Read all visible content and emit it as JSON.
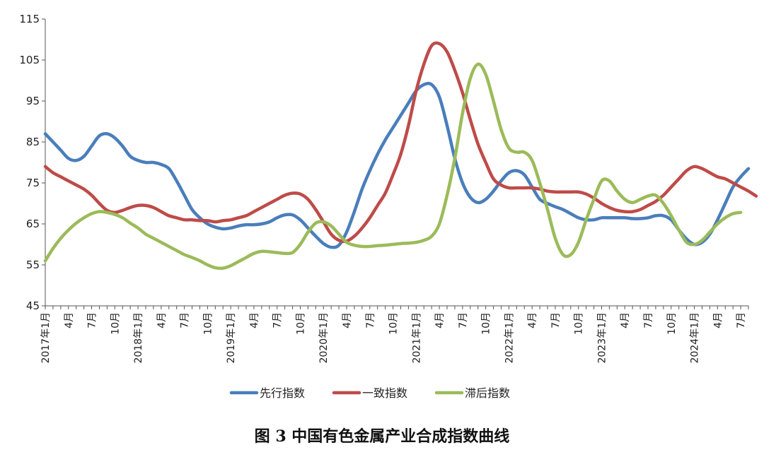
{
  "chart_data": {
    "type": "line",
    "title": "图 3    中国有色金属产业合成指数曲线",
    "xlabel": "",
    "ylabel": "",
    "ylim": [
      45,
      115
    ],
    "yticks": [
      45,
      55,
      65,
      75,
      85,
      95,
      105,
      115
    ],
    "grid": false,
    "legend_position": "bottom",
    "x_labels": [
      "2017年1月",
      "",
      "",
      "4月",
      "",
      "",
      "7月",
      "",
      "",
      "10月",
      "",
      "",
      "2018年1月",
      "",
      "",
      "4月",
      "",
      "",
      "7月",
      "",
      "",
      "10月",
      "",
      "",
      "2019年1月",
      "",
      "",
      "4月",
      "",
      "",
      "7月",
      "",
      "",
      "10月",
      "",
      "",
      "2020年1月",
      "",
      "",
      "4月",
      "",
      "",
      "7月",
      "",
      "",
      "10月",
      "",
      "",
      "2021年1月",
      "",
      "",
      "4月",
      "",
      "",
      "7月",
      "",
      "",
      "10月",
      "",
      "",
      "2022年1月",
      "",
      "",
      "4月",
      "",
      "",
      "7月",
      "",
      "",
      "10月",
      "",
      "",
      "2023年1月",
      "",
      "",
      "4月",
      "",
      "",
      "7月",
      "",
      "",
      "10月",
      "",
      "",
      "2024年1月",
      "",
      "",
      "4月",
      "",
      "",
      "7月",
      ""
    ],
    "series": [
      {
        "name": "先行指数",
        "color": "#4a7ebb",
        "values": [
          87,
          85,
          83,
          81,
          80.5,
          81.5,
          84,
          86.5,
          87,
          86,
          84,
          81.5,
          80.5,
          80,
          80,
          79.5,
          78.5,
          75.5,
          72,
          68.5,
          66.5,
          65,
          64.2,
          63.8,
          64,
          64.5,
          64.8,
          64.8,
          65,
          65.5,
          66.5,
          67.2,
          67.2,
          66,
          64,
          62,
          60.2,
          59.3,
          59.8,
          63,
          68,
          73.5,
          78,
          82,
          85.5,
          88.5,
          91.5,
          94.5,
          97.5,
          99,
          99,
          96,
          89,
          81,
          75,
          71.5,
          70.2,
          71,
          73,
          75.5,
          77.5,
          78,
          77,
          74,
          71,
          70,
          69.2,
          68.5,
          67.5,
          66.5,
          66,
          66,
          66.5,
          66.5,
          66.5,
          66.5,
          66.3,
          66.3,
          66.5,
          67,
          67,
          66,
          63.5,
          61.3,
          60,
          60.5,
          62.5,
          66,
          70,
          74,
          76.5,
          78.5
        ]
      },
      {
        "name": "一致指数",
        "color": "#be4b48",
        "values": [
          79,
          77.5,
          76.5,
          75.5,
          74.5,
          73.5,
          72,
          70,
          68.3,
          67.8,
          68.3,
          69,
          69.5,
          69.5,
          69,
          68,
          67,
          66.5,
          66,
          66,
          65.8,
          65.8,
          65.5,
          65.8,
          66,
          66.5,
          67,
          68,
          69,
          70,
          71,
          72,
          72.5,
          72.3,
          71,
          68.5,
          65.5,
          62.5,
          61,
          60.8,
          62,
          64,
          66.5,
          69.5,
          72.5,
          77,
          82,
          89,
          97.5,
          104,
          108.5,
          109,
          107,
          102.5,
          97,
          90.5,
          84.5,
          80,
          76,
          74.5,
          73.8,
          73.8,
          73.8,
          73.8,
          73.5,
          73,
          72.8,
          72.8,
          72.8,
          72.8,
          72.3,
          71.3,
          70,
          69,
          68.3,
          68,
          68,
          68.5,
          69.5,
          70.5,
          72,
          74,
          76,
          78,
          79,
          78.5,
          77.5,
          76.5,
          76,
          75,
          74,
          73,
          71.8
        ]
      },
      {
        "name": "滞后指数",
        "color": "#9bbb59",
        "values": [
          56,
          59,
          61.5,
          63.5,
          65.2,
          66.5,
          67.5,
          68,
          67.8,
          67.3,
          66.5,
          65.2,
          64,
          62.5,
          61.5,
          60.5,
          59.5,
          58.5,
          57.5,
          56.8,
          56,
          55,
          54.3,
          54.2,
          54.8,
          55.8,
          56.8,
          57.8,
          58.3,
          58.2,
          58,
          57.8,
          58,
          60,
          63,
          65.2,
          65.5,
          64.5,
          62.5,
          60.5,
          59.8,
          59.5,
          59.5,
          59.7,
          59.8,
          60,
          60.2,
          60.3,
          60.5,
          61,
          62,
          65,
          72,
          81,
          92,
          100.5,
          104,
          101.5,
          95,
          88,
          83.5,
          82.5,
          82.5,
          80.5,
          75,
          68.5,
          61.5,
          57.5,
          57.5,
          60.5,
          66,
          71,
          75.5,
          75.5,
          73,
          71,
          70.2,
          71,
          71.8,
          72,
          70,
          67,
          63.5,
          60.5,
          60,
          61,
          63,
          65,
          66.5,
          67.5,
          67.8
        ]
      }
    ]
  }
}
